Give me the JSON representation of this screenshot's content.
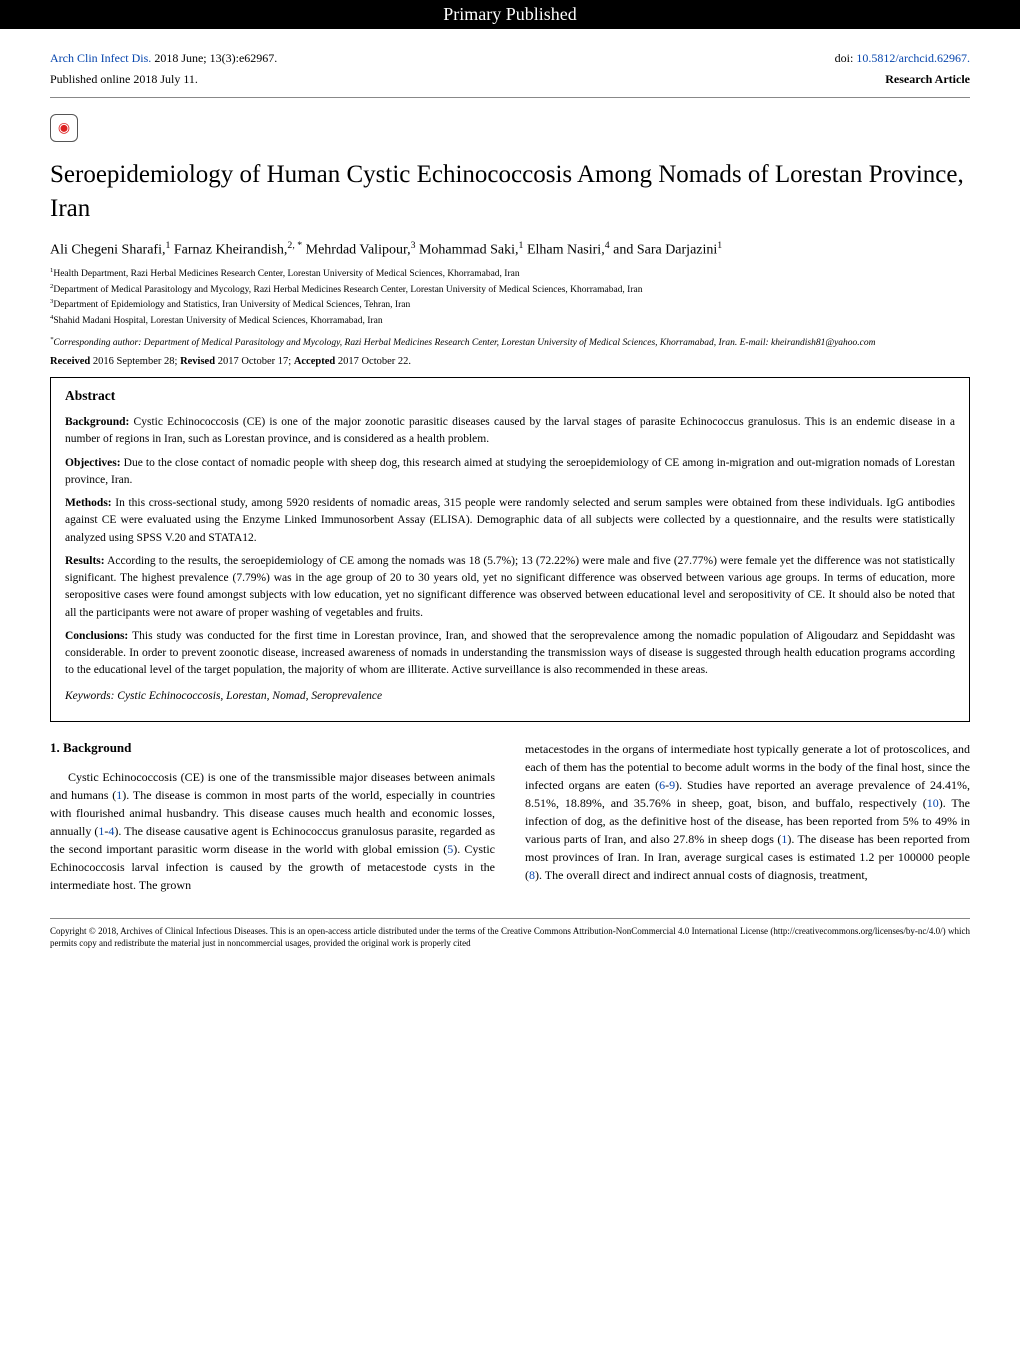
{
  "banner": "Primary Published",
  "header": {
    "journal": "Arch Clin Infect Dis.",
    "citation": " 2018 June; 13(3):e62967.",
    "doi_prefix": "doi: ",
    "doi": "10.5812/archcid.62967.",
    "published": "Published online 2018 July 11.",
    "article_type": "Research Article"
  },
  "title": "Seroepidemiology of Human Cystic Echinococcosis Among Nomads of Lorestan Province, Iran",
  "authors_html": "Ali Chegeni Sharafi,<sup>1</sup> Farnaz Kheirandish,<sup>2, *</sup> Mehrdad Valipour,<sup>3</sup> Mohammad Saki,<sup>1</sup> Elham Nasiri,<sup>4</sup> and Sara Darjazini<sup>1</sup>",
  "affiliations": [
    "Health Department, Razi Herbal Medicines Research Center, Lorestan University of Medical Sciences, Khorramabad, Iran",
    "Department of Medical Parasitology and Mycology, Razi Herbal Medicines Research Center, Lorestan University of Medical Sciences, Khorramabad, Iran",
    "Department of Epidemiology and Statistics, Iran University of Medical Sciences, Tehran, Iran",
    "Shahid Madani Hospital, Lorestan University of Medical Sciences, Khorramabad, Iran"
  ],
  "corresponding": "Corresponding author: Department of Medical Parasitology and Mycology, Razi Herbal Medicines Research Center, Lorestan University of Medical Sciences, Khorramabad, Iran. E-mail: kheirandish81@yahoo.com",
  "dates": {
    "received_label": "Received",
    "received": " 2016 September 28; ",
    "revised_label": "Revised",
    "revised": " 2017 October 17; ",
    "accepted_label": "Accepted",
    "accepted": " 2017 October 22."
  },
  "abstract": {
    "heading": "Abstract",
    "background_label": "Background:",
    "background": " Cystic Echinococcosis (CE) is one of the major zoonotic parasitic diseases caused by the larval stages of parasite Echinococcus granulosus. This is an endemic disease in a number of regions in Iran, such as Lorestan province, and is considered as a health problem.",
    "objectives_label": "Objectives:",
    "objectives": " Due to the close contact of nomadic people with sheep dog, this research aimed at studying the seroepidemiology of CE among in-migration and out-migration nomads of Lorestan province, Iran.",
    "methods_label": "Methods:",
    "methods": " In this cross-sectional study, among 5920 residents of nomadic areas, 315 people were randomly selected and serum samples were obtained from these individuals. IgG antibodies against CE were evaluated using the Enzyme Linked Immunosorbent Assay (ELISA). Demographic data of all subjects were collected by a questionnaire, and the results were statistically analyzed using SPSS V.20 and STATA12.",
    "results_label": "Results:",
    "results": " According to the results, the seroepidemiology of CE among the nomads was 18 (5.7%); 13 (72.22%) were male and five (27.77%) were female yet the difference was not statistically significant. The highest prevalence (7.79%) was in the age group of 20 to 30 years old, yet no significant difference was observed between various age groups. In terms of education, more seropositive cases were found amongst subjects with low education, yet no significant difference was observed between educational level and seropositivity of CE. It should also be noted that all the participants were not aware of proper washing of vegetables and fruits.",
    "conclusions_label": "Conclusions:",
    "conclusions": " This study was conducted for the first time in Lorestan province, Iran, and showed that the seroprevalence among the nomadic population of Aligoudarz and Sepiddasht was considerable. In order to prevent zoonotic disease, increased awareness of nomads in understanding the transmission ways of disease is suggested through health education programs according to the educational level of the target population, the majority of whom are illiterate. Active surveillance is also recommended in these areas.",
    "keywords_label": "Keywords:",
    "keywords": " Cystic Echinococcosis, Lorestan, Nomad, Seroprevalence"
  },
  "body": {
    "section_heading": "1. Background",
    "col1_html": "Cystic Echinococcosis (CE) is one of the transmissible major diseases between animals and humans (<span class='ref'>1</span>). The disease is common in most parts of the world, especially in countries with flourished animal husbandry. This disease causes much health and economic losses, annually (<span class='ref'>1</span>-<span class='ref'>4</span>). The disease causative agent is Echinococcus granulosus parasite, regarded as the second important parasitic worm disease in the world with global emission (<span class='ref'>5</span>). Cystic Echinococcosis larval infection is caused by the growth of metacestode cysts in the intermediate host. The grown",
    "col2_html": "metacestodes in the organs of intermediate host typically generate a lot of protoscolices, and each of them has the potential to become adult worms in the body of the final host, since the infected organs are eaten (<span class='ref'>6</span>-<span class='ref'>9</span>). Studies have reported an average prevalence of 24.41%, 8.51%, 18.89%, and 35.76% in sheep, goat, bison, and buffalo, respectively (<span class='ref'>10</span>). The infection of dog, as the definitive host of the disease, has been reported from 5% to 49% in various parts of Iran, and also 27.8% in sheep dogs (<span class='ref'>1</span>). The disease has been reported from most provinces of Iran. In Iran, average surgical cases is estimated 1.2 per 100000 people (<span class='ref'>8</span>). The overall direct and indirect annual costs of diagnosis, treatment,"
  },
  "footer": "Copyright © 2018, Archives of Clinical Infectious Diseases. This is an open-access article distributed under the terms of the Creative Commons Attribution-NonCommercial 4.0 International License (http://creativecommons.org/licenses/by-nc/4.0/) which permits copy and redistribute the material just in noncommercial usages, provided the original work is properly cited"
}
